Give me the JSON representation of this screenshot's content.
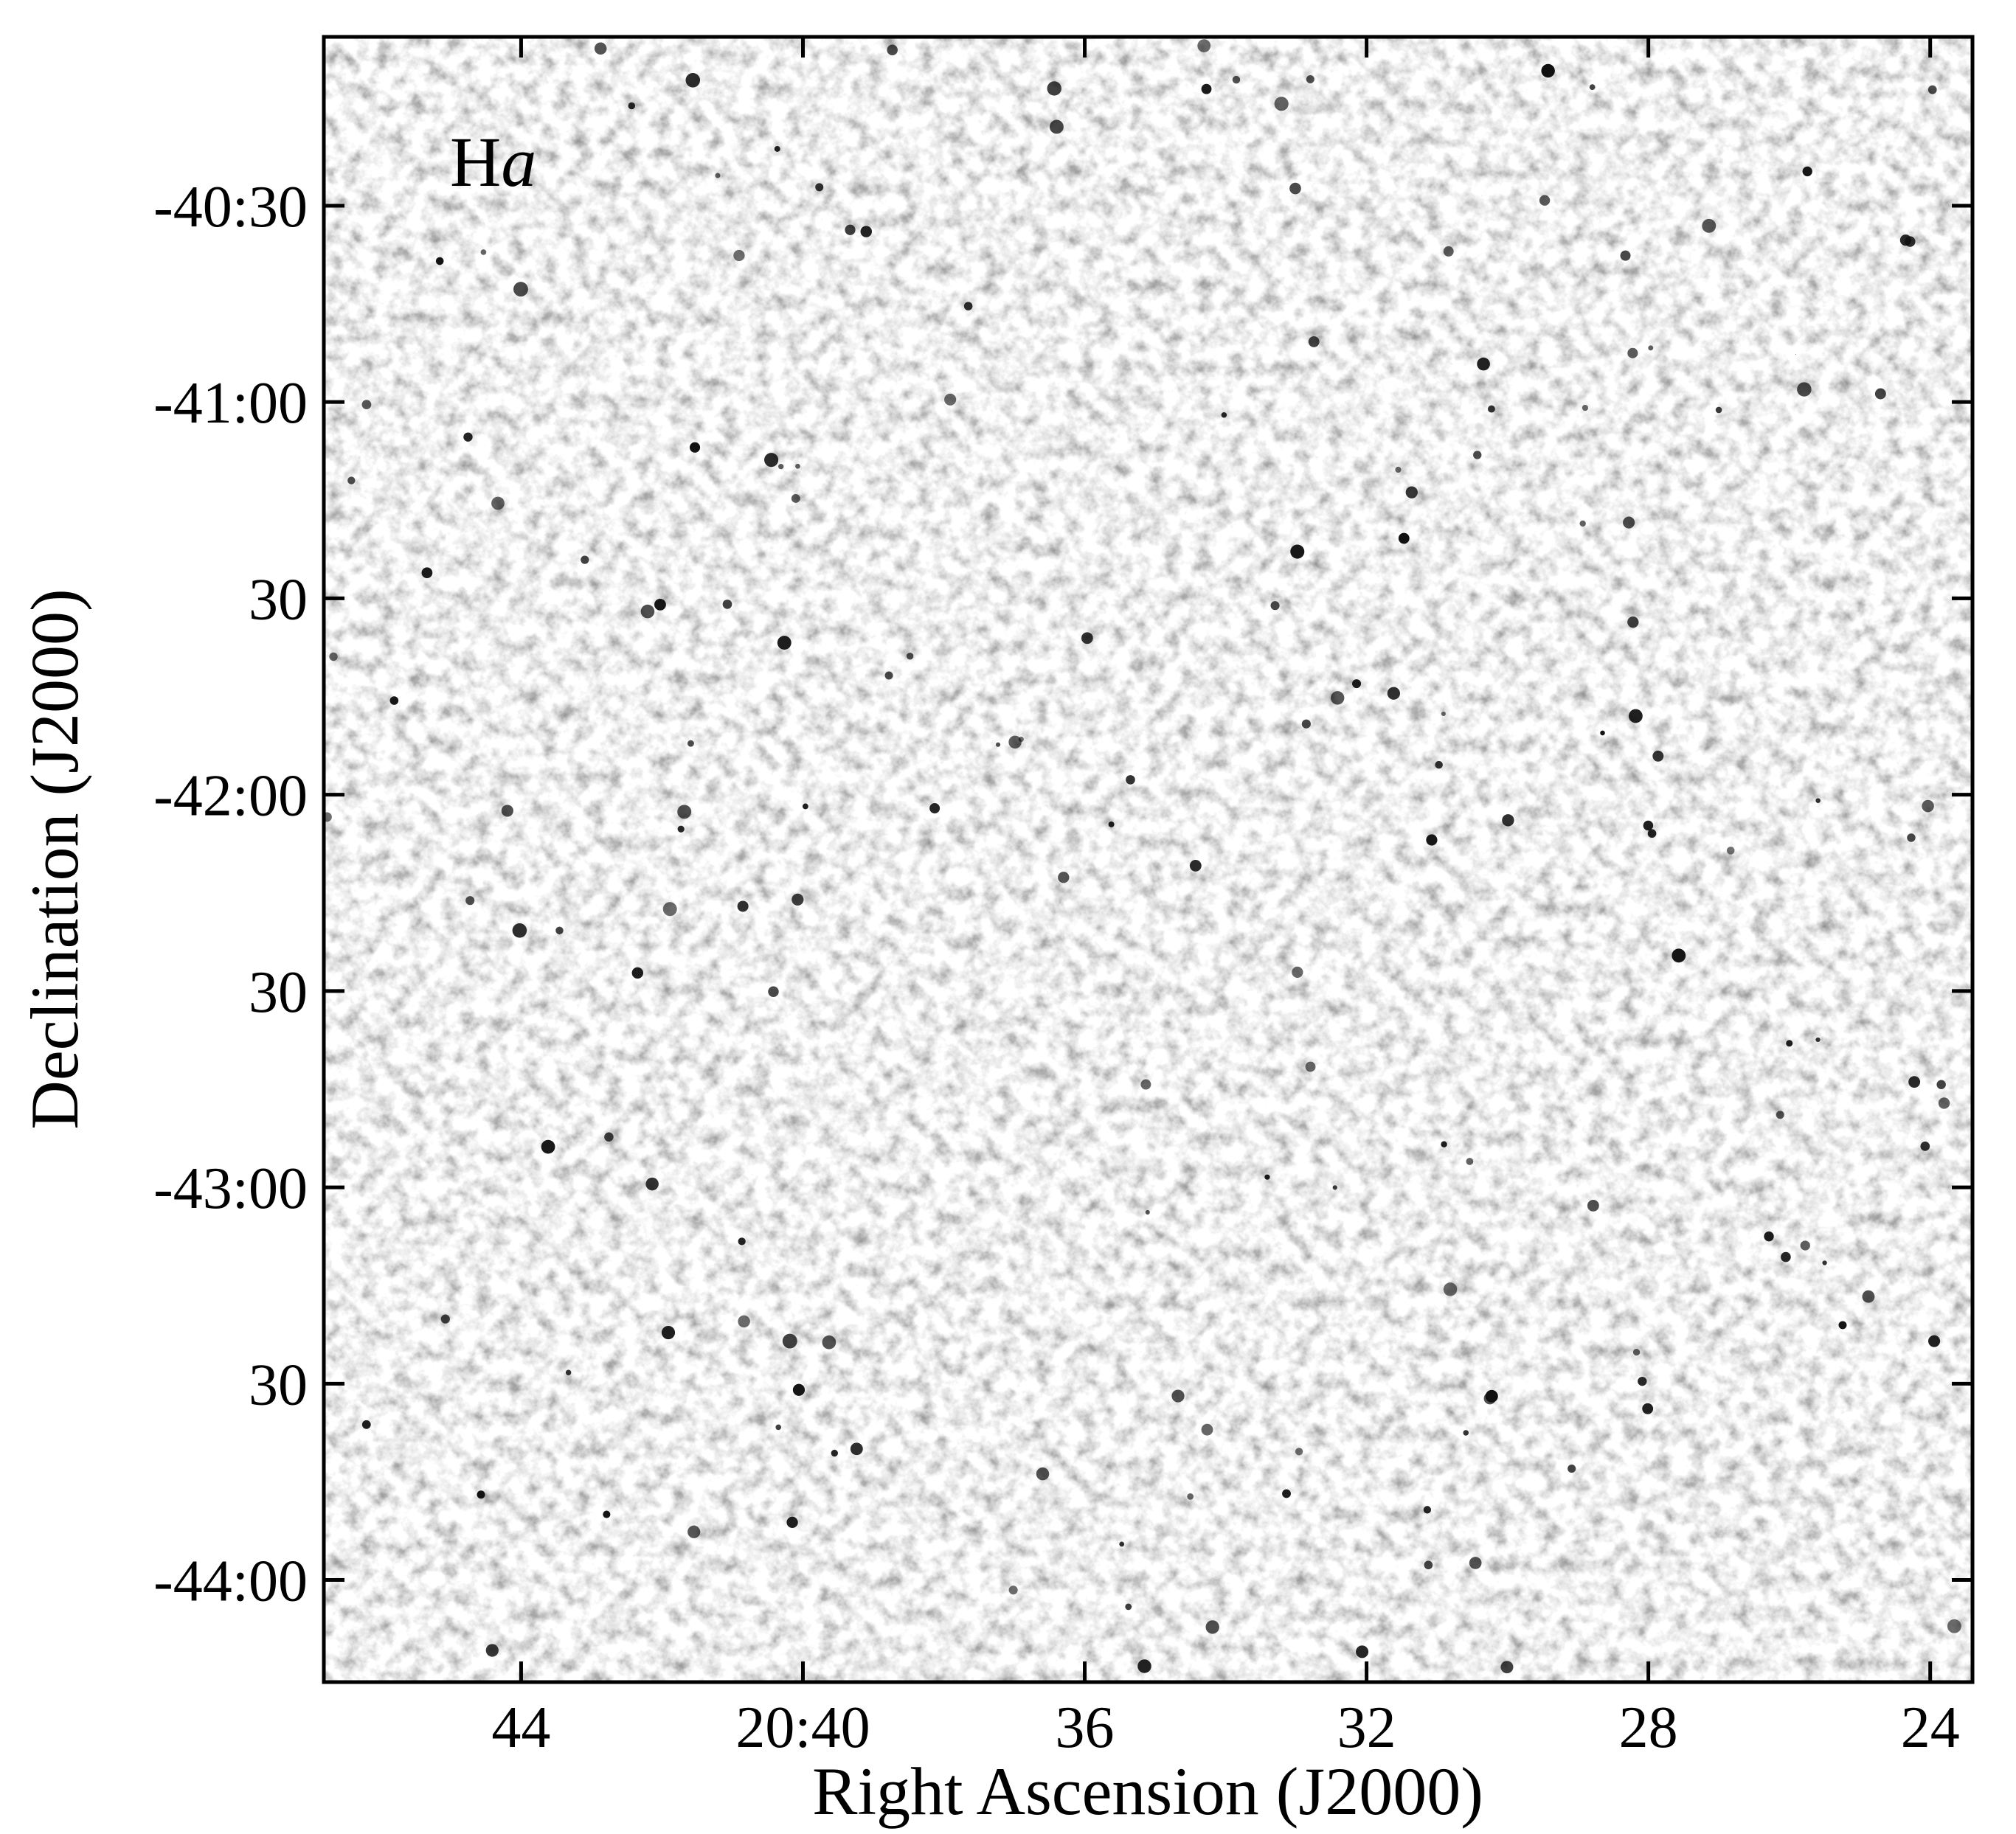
{
  "chart_data": {
    "type": "image",
    "annotation": [
      "H",
      "a"
    ],
    "x_label": "Right Ascension (J2000)",
    "y_label": "Declination (J2000)",
    "xlim": [
      46.8,
      23.4
    ],
    "xticks": [
      44,
      {
        "value": 40,
        "label": "20:40"
      },
      36,
      32,
      28,
      24
    ],
    "ylim": [
      -44.26,
      -40.07
    ],
    "yticks": [
      {
        "value": -40.5,
        "label": "-40:30"
      },
      {
        "value": -41,
        "label": "-41:00"
      },
      {
        "value": -41.5,
        "label": "30"
      },
      {
        "value": -42,
        "label": "-42:00"
      },
      {
        "value": -42.5,
        "label": "30"
      },
      {
        "value": -43,
        "label": "-43:00"
      },
      {
        "value": -43.5,
        "label": "30"
      },
      {
        "value": -44,
        "label": "-44:00"
      }
    ]
  }
}
